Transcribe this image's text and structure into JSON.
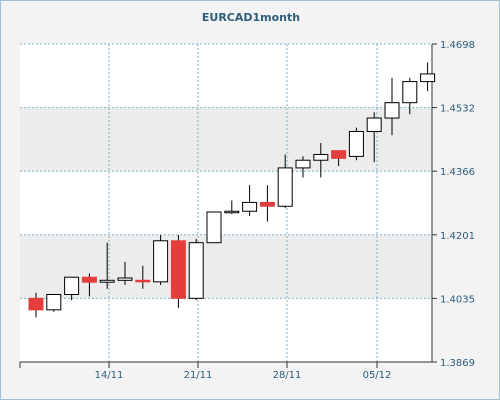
{
  "chart_data": {
    "type": "candlestick",
    "title": "EURCAD1month",
    "ylim": [
      1.3869,
      1.4698
    ],
    "y_ticks": [
      "1.4698",
      "1.4532",
      "1.4366",
      "1.4201",
      "1.4035",
      "1.3869"
    ],
    "x_ticks": [
      "14/11",
      "21/11",
      "28/11",
      "05/12"
    ],
    "grid": true,
    "colors": {
      "up": "#ffffff",
      "down": "#e53c3c",
      "outline": "#000000",
      "grid": "#7fb3c8",
      "band": "#ececec"
    },
    "candles": [
      {
        "o": 1.4035,
        "h": 1.405,
        "l": 1.3985,
        "c": 1.4005
      },
      {
        "o": 1.4005,
        "h": 1.4045,
        "l": 1.4,
        "c": 1.4045
      },
      {
        "o": 1.4045,
        "h": 1.409,
        "l": 1.403,
        "c": 1.409
      },
      {
        "o": 1.409,
        "h": 1.41,
        "l": 1.404,
        "c": 1.4077
      },
      {
        "o": 1.4077,
        "h": 1.418,
        "l": 1.406,
        "c": 1.4082
      },
      {
        "o": 1.4082,
        "h": 1.413,
        "l": 1.407,
        "c": 1.4088
      },
      {
        "o": 1.4082,
        "h": 1.412,
        "l": 1.406,
        "c": 1.4078
      },
      {
        "o": 1.4078,
        "h": 1.42,
        "l": 1.407,
        "c": 1.4185
      },
      {
        "o": 1.4185,
        "h": 1.42,
        "l": 1.401,
        "c": 1.4035
      },
      {
        "o": 1.4035,
        "h": 1.419,
        "l": 1.403,
        "c": 1.418
      },
      {
        "o": 1.418,
        "h": 1.426,
        "l": 1.418,
        "c": 1.426
      },
      {
        "o": 1.426,
        "h": 1.429,
        "l": 1.4255,
        "c": 1.4262
      },
      {
        "o": 1.4262,
        "h": 1.433,
        "l": 1.425,
        "c": 1.4285
      },
      {
        "o": 1.4285,
        "h": 1.433,
        "l": 1.4235,
        "c": 1.4275
      },
      {
        "o": 1.4275,
        "h": 1.441,
        "l": 1.427,
        "c": 1.4375
      },
      {
        "o": 1.4375,
        "h": 1.4405,
        "l": 1.435,
        "c": 1.4395
      },
      {
        "o": 1.4395,
        "h": 1.444,
        "l": 1.435,
        "c": 1.441
      },
      {
        "o": 1.442,
        "h": 1.442,
        "l": 1.438,
        "c": 1.44
      },
      {
        "o": 1.4405,
        "h": 1.448,
        "l": 1.4395,
        "c": 1.447
      },
      {
        "o": 1.447,
        "h": 1.452,
        "l": 1.439,
        "c": 1.4505
      },
      {
        "o": 1.4505,
        "h": 1.461,
        "l": 1.446,
        "c": 1.4545
      },
      {
        "o": 1.4545,
        "h": 1.461,
        "l": 1.4515,
        "c": 1.46
      },
      {
        "o": 1.46,
        "h": 1.465,
        "l": 1.4575,
        "c": 1.462
      }
    ]
  }
}
